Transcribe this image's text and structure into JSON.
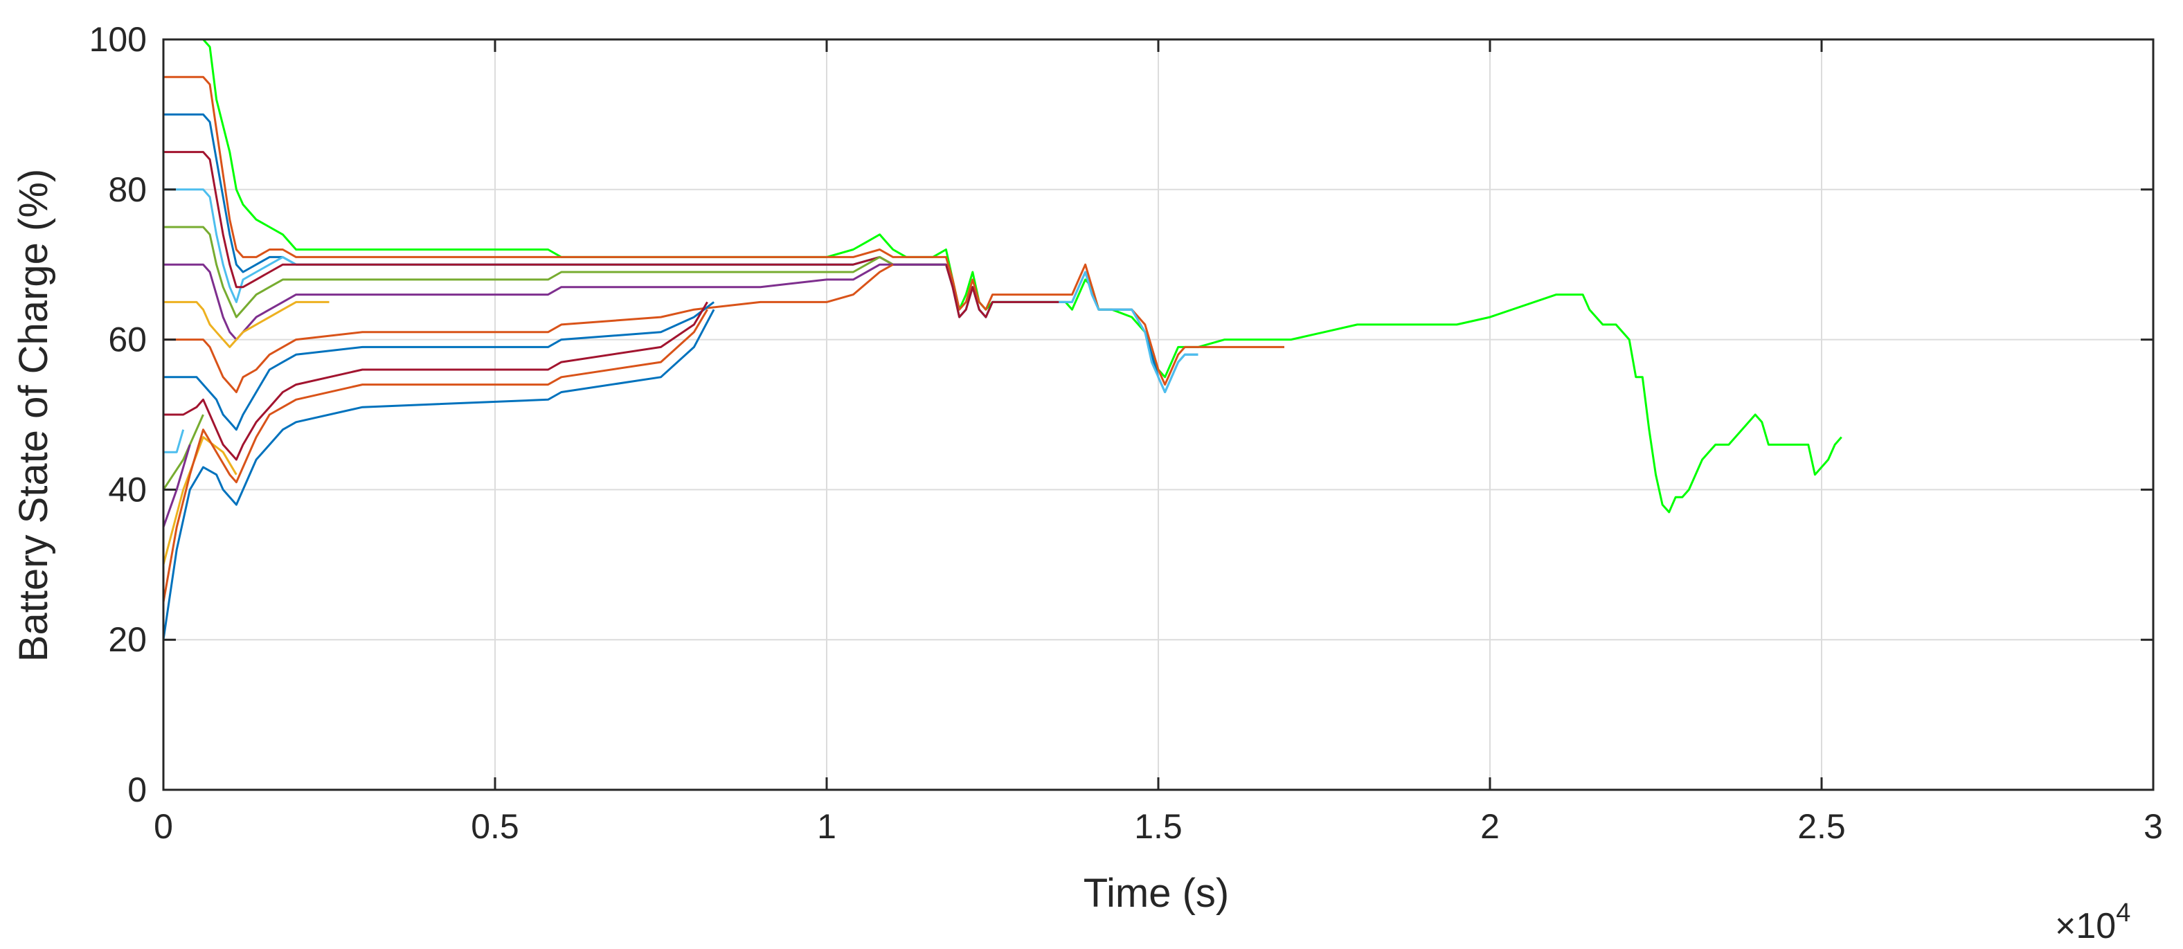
{
  "chart_data": {
    "type": "line",
    "xlabel": "Time (s)",
    "ylabel": "Battery State of Charge (%)",
    "x_multiplier_label": "×10",
    "x_multiplier_exponent": "4",
    "xlim": [
      0,
      30000
    ],
    "ylim": [
      0,
      100
    ],
    "x_ticks": [
      0,
      5000,
      10000,
      15000,
      20000,
      25000,
      30000
    ],
    "x_tick_labels": [
      "0",
      "0.5",
      "1",
      "1.5",
      "2",
      "2.5",
      "3"
    ],
    "y_ticks": [
      0,
      20,
      40,
      60,
      80,
      100
    ],
    "y_tick_labels": [
      "0",
      "20",
      "40",
      "60",
      "80",
      "100"
    ],
    "grid": true,
    "series": [
      {
        "color": "#00ff00",
        "x": [
          0,
          600,
          700,
          800,
          1000,
          1100,
          1200,
          1400,
          1600,
          1800,
          2000,
          3000,
          5800,
          6000,
          9000,
          10000,
          10400,
          10600,
          10800,
          10900,
          11000,
          11200,
          11600,
          11800,
          11900,
          12000,
          12100,
          12200,
          12300,
          12400,
          12500,
          13500,
          13600,
          13700,
          13800,
          13900,
          14000,
          14100,
          14300,
          14600,
          14800,
          14900,
          15000,
          15100,
          15200,
          15300,
          15400,
          15600,
          16000,
          16900,
          17000,
          17500,
          18000,
          19000,
          19500,
          20000,
          21000,
          21400,
          21500,
          21700,
          21900,
          22100,
          22200,
          22300,
          22400,
          22500,
          22600,
          22700,
          22800,
          22900,
          23000,
          23200,
          23400,
          23600,
          23800,
          24000,
          24100,
          24200,
          24300,
          24500,
          24600,
          24800,
          24900,
          25000,
          25100,
          25200,
          25300
        ],
        "y": [
          100,
          100,
          99,
          92,
          85,
          80,
          78,
          76,
          75,
          74,
          72,
          72,
          72,
          71,
          71,
          71,
          72,
          73,
          74,
          73,
          72,
          71,
          71,
          72,
          68,
          64,
          66,
          69,
          65,
          64,
          65,
          65,
          65,
          64,
          66,
          68,
          67,
          64,
          64,
          63,
          61,
          58,
          56,
          55,
          57,
          59,
          59,
          59,
          60,
          60,
          60,
          61,
          62,
          62,
          62,
          63,
          66,
          66,
          64,
          62,
          62,
          60,
          55,
          55,
          48,
          42,
          38,
          37,
          39,
          39,
          40,
          44,
          46,
          46,
          48,
          50,
          49,
          46,
          46,
          46,
          46,
          46,
          42,
          43,
          44,
          46,
          47
        ]
      },
      {
        "color": "#d95319",
        "x": [
          0,
          600,
          700,
          800,
          900,
          1000,
          1100,
          1200,
          1400,
          1600,
          1800,
          2000,
          3000,
          5800,
          6000,
          9000,
          10000,
          10400,
          10800,
          11000,
          11200,
          11600,
          11800,
          11900,
          12000,
          12100,
          12200,
          12300,
          12400,
          12500,
          13500,
          13600,
          13700,
          13800,
          13900,
          14000,
          14100,
          14300,
          14600,
          14800,
          14900,
          15000,
          15100,
          15200,
          15300,
          15400,
          15600,
          16900
        ],
        "y": [
          95,
          95,
          94,
          88,
          82,
          76,
          72,
          71,
          71,
          72,
          72,
          71,
          71,
          71,
          71,
          71,
          71,
          71,
          72,
          71,
          71,
          71,
          71,
          68,
          64,
          65,
          68,
          65,
          64,
          66,
          66,
          66,
          66,
          68,
          70,
          67,
          64,
          64,
          64,
          62,
          59,
          56,
          54,
          56,
          58,
          59,
          59,
          59
        ]
      },
      {
        "color": "#0072bd",
        "x": [
          0,
          600,
          700,
          800,
          900,
          1000,
          1100,
          1200,
          1400,
          1600,
          1800,
          2000,
          3000,
          5800,
          6000,
          9000,
          10000,
          10400,
          10800,
          11000,
          11200,
          11600,
          11800,
          11900,
          12000,
          12100,
          12200,
          12300,
          12400,
          12500,
          13500,
          13600,
          13700,
          13800,
          13900,
          14000,
          14100,
          14300,
          14600,
          14800,
          14900,
          15000,
          15100,
          15200,
          15300,
          15400,
          15600
        ],
        "y": [
          90,
          90,
          89,
          84,
          79,
          74,
          70,
          69,
          70,
          71,
          71,
          70,
          70,
          70,
          70,
          70,
          70,
          70,
          71,
          70,
          70,
          70,
          70,
          67,
          63,
          64,
          67,
          64,
          63,
          65,
          65,
          65,
          65,
          67,
          69,
          66,
          64,
          64,
          64,
          61,
          58,
          55,
          53,
          55,
          57,
          58,
          58
        ]
      },
      {
        "color": "#4dbeee",
        "x": [
          0,
          600,
          700,
          800,
          900,
          1000,
          1100,
          1200,
          1400,
          1600,
          1800,
          2000,
          3000,
          5800,
          6000,
          9000,
          10000,
          10400,
          10800,
          11000,
          11200,
          11600,
          11800,
          11900,
          12000,
          12100,
          12200,
          12300,
          12400,
          12500,
          13500,
          13600,
          13700,
          13800,
          13900,
          14000,
          14100,
          14300,
          14600,
          14800,
          14900,
          15000,
          15100,
          15200,
          15300,
          15400,
          15600
        ],
        "y": [
          80,
          80,
          79,
          74,
          70,
          67,
          65,
          68,
          69,
          70,
          71,
          70,
          70,
          70,
          70,
          70,
          70,
          70,
          71,
          70,
          70,
          70,
          70,
          67,
          63,
          64,
          67,
          64,
          63,
          65,
          65,
          65,
          65,
          67,
          69,
          66,
          64,
          64,
          64,
          61,
          57,
          55,
          53,
          55,
          57,
          58,
          58
        ]
      },
      {
        "color": "#a2142f",
        "x": [
          0,
          600,
          700,
          800,
          900,
          1000,
          1100,
          1200,
          1400,
          1600,
          1800,
          2000,
          3000,
          5800,
          6000,
          9000,
          10000,
          10400,
          10800,
          11000,
          11200,
          11600,
          11800,
          11900,
          12000,
          12100,
          12200,
          12300,
          12400,
          12500,
          13500
        ],
        "y": [
          85,
          85,
          84,
          79,
          74,
          70,
          67,
          67,
          68,
          69,
          70,
          70,
          70,
          70,
          70,
          70,
          70,
          70,
          71,
          70,
          70,
          70,
          70,
          67,
          63,
          64,
          67,
          64,
          63,
          65,
          65
        ]
      },
      {
        "color": "#77ac30",
        "x": [
          0,
          600,
          700,
          800,
          900,
          1000,
          1100,
          1200,
          1400,
          1600,
          1800,
          2000,
          3000,
          5800,
          6000,
          9000,
          10000,
          10400,
          10800,
          11000,
          11200,
          11600,
          11800
        ],
        "y": [
          75,
          75,
          74,
          70,
          67,
          65,
          63,
          64,
          66,
          67,
          68,
          68,
          68,
          68,
          69,
          69,
          69,
          69,
          71,
          70,
          70,
          70,
          70
        ]
      },
      {
        "color": "#7e2f8e",
        "x": [
          0,
          600,
          700,
          800,
          900,
          1000,
          1100,
          1200,
          1400,
          1600,
          1800,
          2000,
          3000,
          5800,
          6000,
          9000,
          10000,
          10400,
          10800,
          11000,
          11200,
          11600,
          11800
        ],
        "y": [
          70,
          70,
          69,
          66,
          63,
          61,
          60,
          61,
          63,
          64,
          65,
          66,
          66,
          66,
          67,
          67,
          68,
          68,
          70,
          70,
          70,
          70,
          70
        ]
      },
      {
        "color": "#edb120",
        "x": [
          0,
          500,
          600,
          700,
          800,
          900,
          1000,
          1100,
          1200,
          1400,
          1600,
          1800,
          2000,
          2500
        ],
        "y": [
          65,
          65,
          64,
          62,
          61,
          60,
          59,
          60,
          61,
          62,
          63,
          64,
          65,
          65
        ]
      },
      {
        "color": "#d95319",
        "x": [
          0,
          600,
          700,
          800,
          900,
          1000,
          1100,
          1200,
          1400,
          1600,
          1800,
          2000,
          3000,
          5800,
          6000,
          7500,
          8000,
          9000,
          10000,
          10400,
          10800,
          11000
        ],
        "y": [
          60,
          60,
          59,
          57,
          55,
          54,
          53,
          55,
          56,
          58,
          59,
          60,
          61,
          61,
          62,
          63,
          64,
          65,
          65,
          66,
          69,
          70
        ]
      },
      {
        "color": "#0072bd",
        "x": [
          0,
          500,
          600,
          700,
          800,
          900,
          1000,
          1100,
          1200,
          1400,
          1600,
          1800,
          2000,
          3000,
          5800,
          6000,
          7500,
          8000,
          8300
        ],
        "y": [
          55,
          55,
          54,
          53,
          52,
          50,
          49,
          48,
          50,
          53,
          56,
          57,
          58,
          59,
          59,
          60,
          61,
          63,
          65
        ]
      },
      {
        "color": "#a2142f",
        "x": [
          0,
          300,
          500,
          600,
          700,
          800,
          900,
          1000,
          1100,
          1200,
          1400,
          1600,
          1800,
          2000,
          3000,
          5800,
          6000,
          7500,
          8000,
          8200
        ],
        "y": [
          50,
          50,
          51,
          52,
          50,
          48,
          46,
          45,
          44,
          46,
          49,
          51,
          53,
          54,
          56,
          56,
          57,
          59,
          62,
          65
        ]
      },
      {
        "color": "#4dbeee",
        "x": [
          0,
          200,
          300
        ],
        "y": [
          45,
          45,
          48
        ]
      },
      {
        "color": "#77ac30",
        "x": [
          0,
          300,
          600
        ],
        "y": [
          40,
          44,
          50
        ]
      },
      {
        "color": "#edb120",
        "x": [
          0,
          300,
          600,
          900,
          1100
        ],
        "y": [
          30,
          40,
          47,
          45,
          42
        ]
      },
      {
        "color": "#d95319",
        "x": [
          0,
          200,
          400,
          600,
          800,
          1000,
          1100,
          1200,
          1400,
          1600,
          1800,
          2000,
          3000,
          5800,
          6000,
          7500,
          8000,
          8200
        ],
        "y": [
          25,
          35,
          42,
          48,
          45,
          42,
          41,
          43,
          47,
          50,
          51,
          52,
          54,
          54,
          55,
          57,
          61,
          64
        ]
      },
      {
        "color": "#7e2f8e",
        "x": [
          0,
          200,
          400
        ],
        "y": [
          35,
          40,
          46
        ]
      },
      {
        "color": "#0072bd",
        "x": [
          0,
          200,
          400,
          600,
          800,
          900,
          1000,
          1100,
          1200,
          1400,
          1600,
          1800,
          2000,
          3000,
          5800,
          6000,
          7500,
          8000,
          8300
        ],
        "y": [
          20,
          32,
          40,
          43,
          42,
          40,
          39,
          38,
          40,
          44,
          46,
          48,
          49,
          51,
          52,
          53,
          55,
          59,
          64
        ]
      }
    ]
  }
}
